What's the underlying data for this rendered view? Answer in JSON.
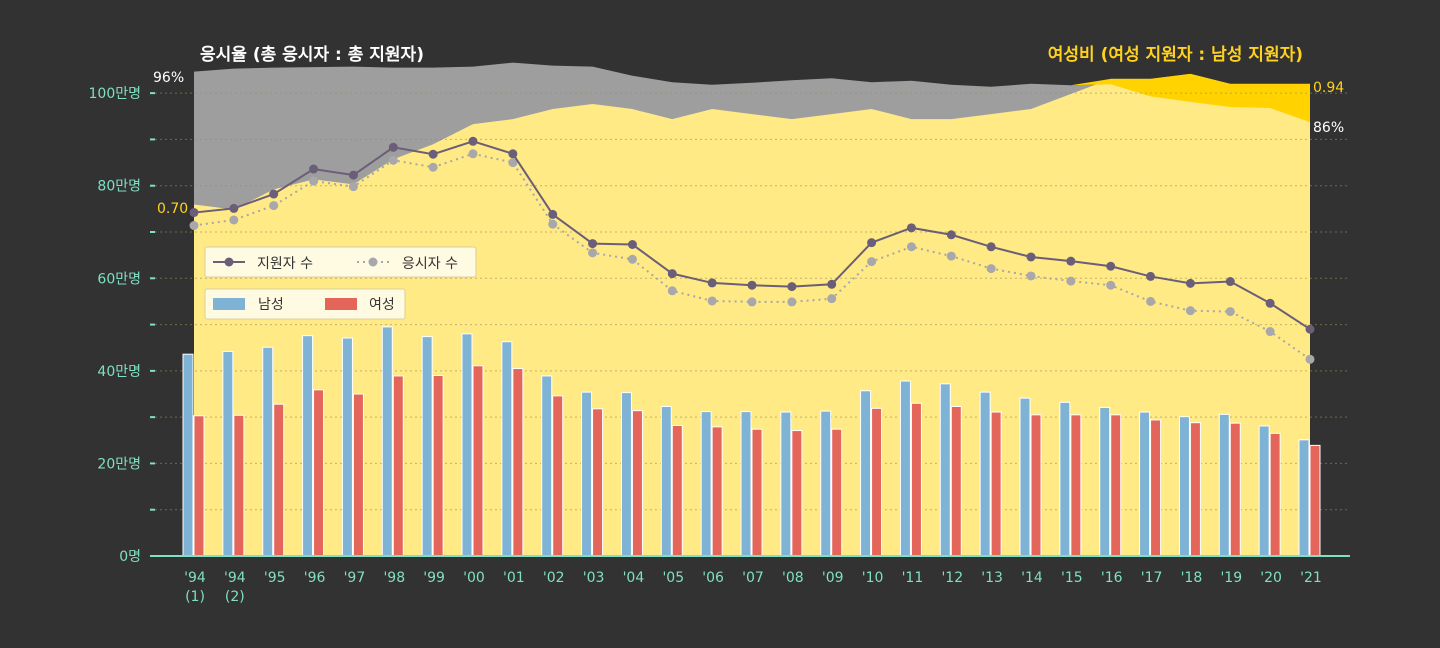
{
  "chart_data": {
    "type": "bar",
    "title_left": "응시율 (총 응시자 : 총 지원자)",
    "title_right": "여성비 (여성 지원자 : 남성 지원자)",
    "categories": [
      "'94\n(1)",
      "'94\n(2)",
      "'95",
      "'96",
      "'97",
      "'98",
      "'99",
      "'00",
      "'01",
      "'02",
      "'03",
      "'04",
      "'05",
      "'06",
      "'07",
      "'08",
      "'09",
      "'10",
      "'11",
      "'12",
      "'13",
      "'14",
      "'15",
      "'16",
      "'17",
      "'18",
      "'19",
      "'20",
      "'21"
    ],
    "y_ticks": [
      {
        "value": 0,
        "label": "0명"
      },
      {
        "value": 20,
        "label": "20만명"
      },
      {
        "value": 40,
        "label": "40만명"
      },
      {
        "value": 60,
        "label": "60만명"
      },
      {
        "value": 80,
        "label": "80만명"
      },
      {
        "value": 100,
        "label": "100만명"
      }
    ],
    "ylim": [
      0,
      105
    ],
    "bars": [
      {
        "name": "남성",
        "color": "#7fb3d5",
        "values": [
          43.6,
          44.2,
          45.1,
          47.6,
          47.1,
          49.5,
          47.4,
          48.0,
          46.3,
          38.9,
          35.4,
          35.3,
          32.3,
          31.2,
          31.2,
          31.1,
          31.3,
          35.7,
          37.8,
          37.2,
          35.4,
          34.1,
          33.2,
          32.1,
          31.1,
          30.1,
          30.6,
          28.1,
          25.1
        ]
      },
      {
        "name": "여성",
        "color": "#e4665a",
        "values": [
          30.3,
          30.4,
          32.8,
          35.9,
          35.0,
          38.9,
          39.0,
          41.1,
          40.5,
          34.6,
          31.8,
          31.4,
          28.2,
          27.9,
          27.4,
          27.1,
          27.4,
          31.9,
          33.0,
          32.3,
          31.1,
          30.5,
          30.5,
          30.5,
          29.4,
          28.8,
          28.7,
          26.5,
          23.9
        ]
      }
    ],
    "lines": [
      {
        "name": "지원자 수",
        "color": "#6b5e78",
        "style": "solid",
        "values": [
          74.2,
          75.1,
          78.2,
          83.6,
          82.3,
          88.3,
          86.8,
          89.6,
          86.9,
          73.8,
          67.5,
          67.3,
          61.0,
          59.0,
          58.5,
          58.2,
          58.7,
          67.7,
          70.9,
          69.4,
          66.8,
          64.6,
          63.7,
          62.6,
          60.4,
          58.9,
          59.3,
          54.6,
          49.0
        ]
      },
      {
        "name": "응시자 수",
        "color": "#a7a7ac",
        "style": "dotted",
        "values": [
          71.4,
          72.6,
          75.7,
          81.0,
          79.8,
          85.5,
          84.0,
          86.9,
          85.0,
          71.7,
          65.5,
          64.1,
          57.3,
          55.1,
          54.9,
          54.9,
          55.6,
          63.6,
          66.8,
          64.8,
          62.1,
          60.5,
          59.4,
          58.5,
          55.0,
          53.0,
          52.8,
          48.5,
          42.5
        ]
      }
    ],
    "area_rates": {
      "name": "응시율",
      "values": [
        96,
        96.6,
        96.8,
        96.9,
        97.0,
        96.8,
        96.8,
        97.0,
        97.8,
        97.2,
        97.0,
        95.2,
        93.9,
        93.4,
        93.8,
        94.3,
        94.7,
        93.9,
        94.2,
        93.4,
        93.0,
        93.6,
        93.3,
        93.5,
        91.1,
        90.0,
        89.0,
        88.8,
        86.0
      ],
      "start_label": "96%",
      "end_label": "86%"
    },
    "area_ratio": {
      "name": "여성비",
      "values": [
        0.7,
        0.69,
        0.73,
        0.75,
        0.74,
        0.79,
        0.82,
        0.86,
        0.87,
        0.89,
        0.9,
        0.89,
        0.87,
        0.89,
        0.88,
        0.87,
        0.88,
        0.89,
        0.87,
        0.87,
        0.88,
        0.89,
        0.92,
        0.95,
        0.95,
        0.96,
        0.94,
        0.94,
        0.94
      ],
      "start_label": "0.70",
      "end_label": "0.94"
    },
    "colors": {
      "background": "#323232",
      "rate_area": "#9e9e9e",
      "ratio_area": "#ffea85",
      "ratio_top": "#ffd200",
      "axis": "#7fe0c4",
      "title_right": "#ffd21e",
      "grid": "#9a8d5a"
    }
  }
}
